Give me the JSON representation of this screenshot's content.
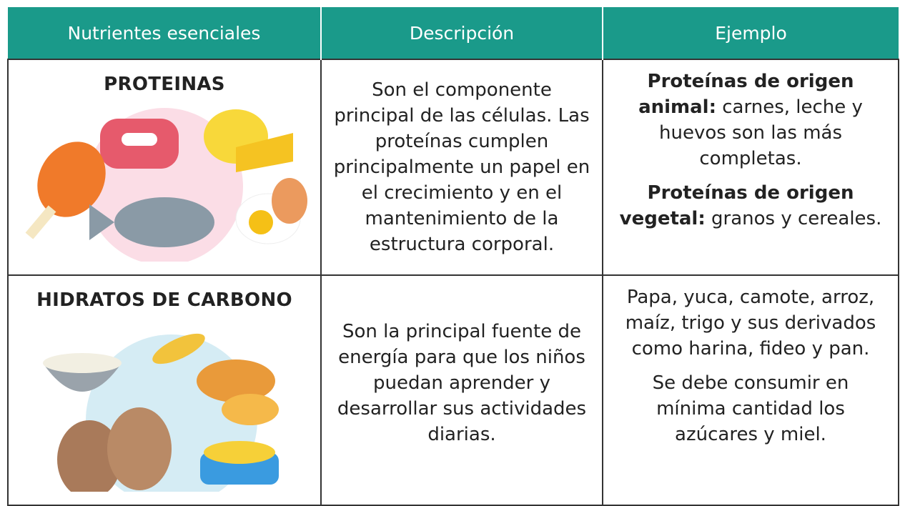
{
  "table": {
    "header": [
      "Nutrientes esenciales",
      "Descripción",
      "Ejemplo"
    ],
    "rows": [
      {
        "nutrient": "PROTEINAS",
        "description": "Son el componente principal de las células. Las proteínas cumplen principalmente un papel en el crecimiento y en el mantenimiento de la estructura corporal.",
        "example": [
          {
            "bold": "Proteínas de origen animal:",
            "text": "carnes, leche y huevos son las más completas."
          },
          {
            "bold": "Proteínas de origen vegetal:",
            "text": "granos y cereales."
          }
        ]
      },
      {
        "nutrient": "HIDRATOS DE CARBONO",
        "description": "Son la principal fuente de energía para que los niños puedan aprender y desarrollar sus actividades diarias.",
        "example": [
          {
            "text": "Papa, yuca, camote, arroz, maíz, trigo y sus derivados como harina, fideo y pan."
          },
          {
            "text": "Se debe consumir en mínima cantidad los azúcares y miel."
          }
        ]
      }
    ]
  }
}
